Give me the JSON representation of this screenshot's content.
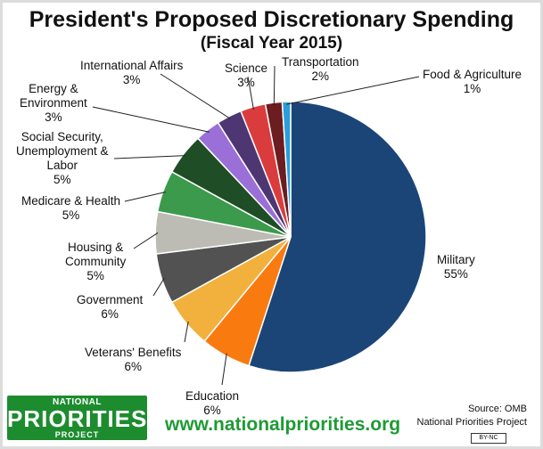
{
  "chart_data": {
    "type": "pie",
    "title": "President's Proposed Discretionary Spending",
    "subtitle": "(Fiscal Year 2015)",
    "slices": [
      {
        "label": "Military",
        "value": 55,
        "value_label": "55%",
        "color": "#1b4577"
      },
      {
        "label": "Education",
        "value": 6,
        "value_label": "6%",
        "color": "#f97b10"
      },
      {
        "label": "Veterans' Benefits",
        "value": 6,
        "value_label": "6%",
        "color": "#f2b03d"
      },
      {
        "label": "Government",
        "value": 6,
        "value_label": "6%",
        "color": "#525252"
      },
      {
        "label": "Housing & Community",
        "value": 5,
        "value_label": "5%",
        "color": "#bcbcb4"
      },
      {
        "label": "Medicare & Health",
        "value": 5,
        "value_label": "5%",
        "color": "#3b9a4c"
      },
      {
        "label": "Social Security, Unemployment & Labor",
        "value": 5,
        "value_label": "5%",
        "color": "#1e4d26"
      },
      {
        "label": "Energy & Environment",
        "value": 3,
        "value_label": "3%",
        "color": "#9b6fd8"
      },
      {
        "label": "International Affairs",
        "value": 3,
        "value_label": "3%",
        "color": "#4d3672"
      },
      {
        "label": "Science",
        "value": 3,
        "value_label": "3%",
        "color": "#da3c3d"
      },
      {
        "label": "Transportation",
        "value": 2,
        "value_label": "2%",
        "color": "#6b1d1f"
      },
      {
        "label": "Food & Agriculture",
        "value": 1,
        "value_label": "1%",
        "color": "#2c9edb"
      }
    ]
  },
  "labels": {
    "military": {
      "name": "Military",
      "pct": "55%"
    },
    "education": {
      "name": "Education",
      "pct": "6%"
    },
    "veterans": {
      "name": "Veterans' Benefits",
      "pct": "6%"
    },
    "government": {
      "name": "Government",
      "pct": "6%"
    },
    "housing": {
      "line1": "Housing &",
      "line2": "Community",
      "pct": "5%"
    },
    "medicare": {
      "name": "Medicare & Health",
      "pct": "5%"
    },
    "social": {
      "line1": "Social Security,",
      "line2": "Unemployment &",
      "line3": "Labor",
      "pct": "5%"
    },
    "energy": {
      "line1": "Energy &",
      "line2": "Environment",
      "pct": "3%"
    },
    "international": {
      "name": "International Affairs",
      "pct": "3%"
    },
    "science": {
      "name": "Science",
      "pct": "3%"
    },
    "transportation": {
      "name": "Transportation",
      "pct": "2%"
    },
    "food": {
      "name": "Food & Agriculture",
      "pct": "1%"
    }
  },
  "footer": {
    "logo_top": "NATIONAL",
    "logo_main": "PRIORITIES",
    "logo_bottom": "PROJECT",
    "website": "www.nationalpriorities.org",
    "source_line1": "Source: OMB",
    "source_line2": "National Priorities Project",
    "license": "BY-NC"
  }
}
